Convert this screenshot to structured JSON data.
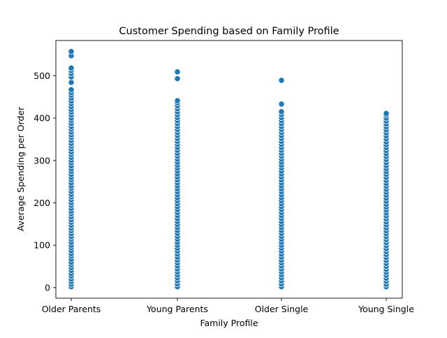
{
  "chart_data": {
    "type": "scatter",
    "title": "Customer Spending based on Family Profile",
    "xlabel": "Family Profile",
    "ylabel": "Average Spending per Order",
    "categories": [
      "Older Parents",
      "Young Parents",
      "Older Single",
      "Young Single"
    ],
    "yticks": [
      0,
      100,
      200,
      300,
      400,
      500
    ],
    "ylim": [
      -25,
      583
    ],
    "grid": false,
    "marker_color": "#1f77b4",
    "series": [
      {
        "values": [
          [
            2,
            8,
            14,
            20,
            27,
            33,
            40,
            47,
            54,
            60,
            67,
            74,
            80,
            87,
            94,
            100,
            107,
            114,
            120,
            127,
            134,
            140,
            147,
            154,
            160,
            167,
            174,
            180,
            187,
            194,
            200,
            207,
            214,
            220,
            227,
            234,
            240,
            247,
            254,
            260,
            267,
            274,
            280,
            287,
            294,
            300,
            307,
            314,
            320,
            327,
            334,
            340,
            347,
            354,
            360,
            367,
            374,
            380,
            387,
            394,
            400,
            407,
            414,
            420,
            427,
            434,
            440,
            447,
            454,
            460,
            467,
            484,
            497,
            505,
            512,
            518,
            547,
            557
          ],
          [
            2,
            9,
            16,
            23,
            30,
            37,
            44,
            51,
            58,
            65,
            72,
            79,
            86,
            93,
            100,
            107,
            114,
            121,
            128,
            135,
            142,
            149,
            156,
            163,
            170,
            177,
            184,
            191,
            198,
            205,
            212,
            219,
            226,
            233,
            240,
            247,
            254,
            261,
            268,
            275,
            282,
            289,
            296,
            303,
            310,
            317,
            324,
            331,
            338,
            345,
            352,
            359,
            366,
            373,
            380,
            387,
            394,
            401,
            408,
            415,
            422,
            429,
            436,
            441,
            493,
            509
          ],
          [
            2,
            9,
            16,
            23,
            30,
            37,
            44,
            51,
            58,
            65,
            72,
            79,
            86,
            93,
            100,
            107,
            114,
            121,
            128,
            135,
            142,
            149,
            156,
            163,
            170,
            177,
            184,
            191,
            198,
            205,
            212,
            219,
            226,
            233,
            240,
            247,
            254,
            261,
            268,
            275,
            282,
            289,
            296,
            303,
            310,
            317,
            324,
            331,
            338,
            345,
            352,
            359,
            366,
            373,
            380,
            387,
            394,
            401,
            408,
            415,
            433,
            489
          ],
          [
            2,
            8,
            15,
            22,
            29,
            36,
            43,
            50,
            57,
            64,
            71,
            78,
            85,
            92,
            99,
            106,
            113,
            120,
            127,
            134,
            141,
            148,
            155,
            162,
            169,
            176,
            183,
            190,
            197,
            204,
            211,
            218,
            225,
            232,
            239,
            246,
            253,
            260,
            267,
            274,
            281,
            288,
            295,
            302,
            309,
            316,
            323,
            330,
            337,
            344,
            351,
            358,
            365,
            372,
            379,
            386,
            393,
            400,
            407,
            411
          ]
        ]
      }
    ]
  }
}
